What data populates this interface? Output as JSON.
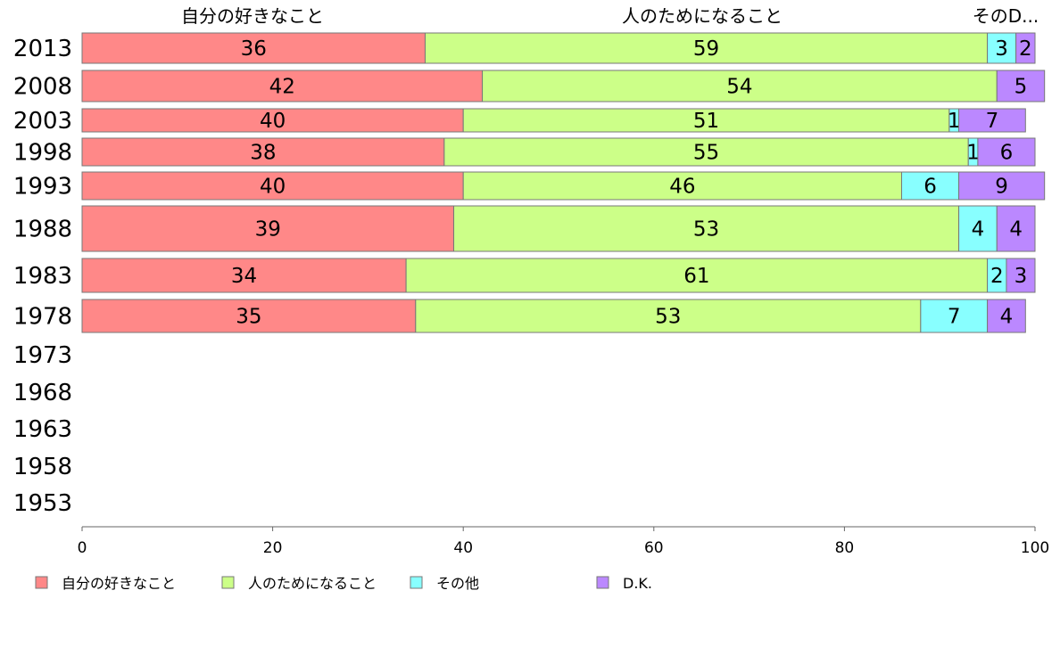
{
  "chart_data": {
    "type": "bar",
    "orientation": "horizontal",
    "stacked": true,
    "categories": [
      "2013",
      "2008",
      "2003",
      "1998",
      "1993",
      "1988",
      "1983",
      "1978",
      "1973",
      "1968",
      "1963",
      "1958",
      "1953"
    ],
    "series": [
      {
        "name": "自分の好きなこと",
        "color": "#ff8888",
        "values": [
          36,
          42,
          40,
          38,
          40,
          39,
          34,
          35,
          null,
          null,
          null,
          null,
          null
        ]
      },
      {
        "name": "人のためになること",
        "color": "#ccff88",
        "values": [
          59,
          54,
          51,
          55,
          46,
          53,
          61,
          53,
          null,
          null,
          null,
          null,
          null
        ]
      },
      {
        "name": "その他",
        "color": "#88ffff",
        "values": [
          3,
          0,
          1,
          1,
          6,
          4,
          2,
          7,
          null,
          null,
          null,
          null,
          null
        ]
      },
      {
        "name": "D.K.",
        "color": "#bb88ff",
        "values": [
          2,
          5,
          7,
          6,
          9,
          4,
          3,
          4,
          null,
          null,
          null,
          null,
          null
        ]
      }
    ],
    "top_labels": [
      "自分の好きなこと",
      "人のためになること",
      "そのD..."
    ],
    "xlim": [
      0,
      100
    ],
    "xticks": [
      "0",
      "20",
      "40",
      "60",
      "80",
      "100"
    ],
    "xlabel": "",
    "ylabel": "",
    "grid": false,
    "legend_position": "bottom"
  }
}
